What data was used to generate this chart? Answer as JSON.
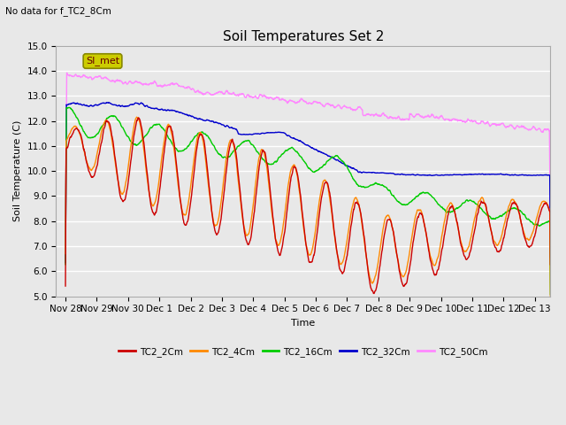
{
  "title": "Soil Temperatures Set 2",
  "subtitle": "No data for f_TC2_8Cm",
  "xlabel": "Time",
  "ylabel": "Soil Temperature (C)",
  "ylim": [
    5.0,
    15.0
  ],
  "yticks": [
    5.0,
    6.0,
    7.0,
    8.0,
    9.0,
    10.0,
    11.0,
    12.0,
    13.0,
    14.0,
    15.0
  ],
  "bg_color": "#e8e8e8",
  "plot_bg_color": "#e8e8e8",
  "grid_color": "#ffffff",
  "colors": {
    "TC2_2Cm": "#cc0000",
    "TC2_4Cm": "#ff8800",
    "TC2_16Cm": "#00cc00",
    "TC2_32Cm": "#0000cc",
    "TC2_50Cm": "#ff88ff"
  },
  "legend_box_color": "#cccc00",
  "legend_box_text": "SI_met",
  "xtick_labels": [
    "Nov 28",
    "Nov 29",
    "Nov 30",
    "Dec 1",
    "Dec 2",
    "Dec 3",
    "Dec 4",
    "Dec 5",
    "Dec 6",
    "Dec 7",
    "Dec 8",
    "Dec 9",
    "Dec 10",
    "Dec 11",
    "Dec 12",
    "Dec 13"
  ],
  "xtick_positions": [
    0,
    1,
    2,
    3,
    4,
    5,
    6,
    7,
    8,
    9,
    10,
    11,
    12,
    13,
    14,
    15
  ]
}
